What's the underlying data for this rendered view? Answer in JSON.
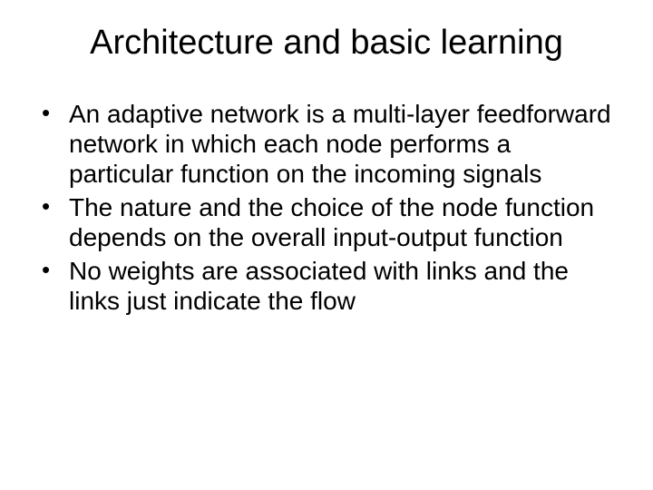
{
  "slide": {
    "title": "Architecture and basic learning",
    "title_fontsize": 38,
    "body_fontsize": 28,
    "background_color": "#ffffff",
    "text_color": "#000000",
    "font_family": "Arial",
    "bullets": [
      "An adaptive network is a multi-layer feedforward network in which each node performs a particular function on the incoming signals",
      "The nature and the choice of the node function  depends on the overall input-output function",
      "No weights are associated with links and the links just indicate the flow"
    ]
  }
}
